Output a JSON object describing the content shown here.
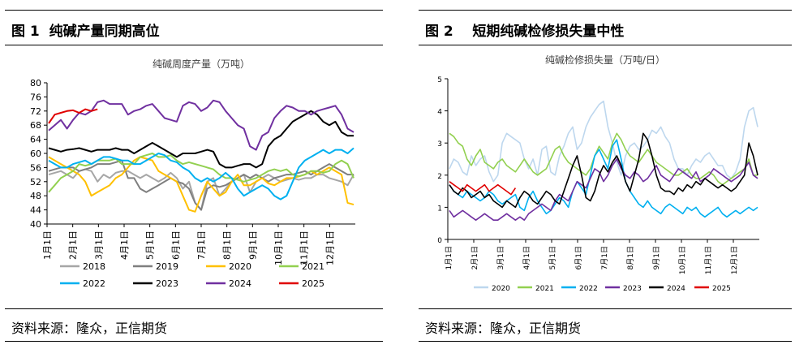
{
  "panels": [
    {
      "title": "图 1  纯碱产量同期高位",
      "source": "资料来源：隆众，正信期货"
    },
    {
      "title": "图 2    短期纯碱检修损失量中性",
      "source": "资料来源：隆众，正信期货"
    }
  ],
  "chart_data": [
    {
      "type": "line",
      "title": "纯碱周度产量（万吨）",
      "xlabel": "",
      "ylabel": "",
      "ylim": [
        40,
        80
      ],
      "yticks": [
        "80",
        "76",
        "72",
        "68",
        "64",
        "60",
        "56",
        "52",
        "48",
        "44",
        "40"
      ],
      "x_tick_labels": [
        "1月1日",
        "2月1日",
        "3月1日",
        "4月1日",
        "5月1日",
        "6月1日",
        "7月1日",
        "8月1日",
        "9月1日",
        "10月1日",
        "11月1日",
        "12月1日"
      ],
      "grid": false,
      "legend_position": "bottom",
      "series": [
        {
          "name": "2018",
          "color": "#a6a6a6",
          "values": [
            54,
            54.5,
            55,
            54,
            53,
            55,
            55.5,
            55,
            52,
            54,
            53,
            54.5,
            55,
            55,
            54,
            53,
            54,
            53,
            52,
            53,
            54.5,
            53,
            50,
            52,
            46,
            44,
            52,
            53,
            48,
            50,
            52,
            53,
            54,
            49,
            52,
            53,
            54,
            53,
            52,
            52.5,
            53,
            52.5,
            53,
            53,
            54,
            54,
            53,
            52.5,
            52,
            51,
            54
          ]
        },
        {
          "name": "2019",
          "color": "#7f7f7f",
          "values": [
            55,
            55.5,
            56,
            56,
            56,
            55,
            55.5,
            56,
            57,
            57,
            57,
            57.5,
            58,
            53,
            53,
            50,
            49,
            50,
            51,
            52,
            53,
            52,
            51.5,
            50,
            46,
            44,
            50,
            51,
            50.5,
            51,
            52,
            53,
            54,
            53,
            54,
            53,
            52,
            53,
            53.5,
            54,
            54,
            54.5,
            55,
            54,
            55,
            56,
            57,
            56,
            55,
            54,
            54
          ]
        },
        {
          "name": "2020",
          "color": "#ffc000",
          "values": [
            59,
            58,
            57,
            56,
            55,
            54,
            52,
            48,
            49,
            50,
            51,
            53,
            54,
            56,
            58,
            59,
            58.5,
            58,
            55,
            54,
            53,
            52,
            48,
            44,
            43.5,
            48,
            52,
            50,
            48,
            49,
            52,
            54,
            51,
            51,
            52,
            53,
            51.5,
            51,
            52,
            53,
            53,
            53.5,
            54,
            55,
            54,
            55,
            56,
            55,
            54,
            46,
            45.5
          ]
        },
        {
          "name": "2021",
          "color": "#92d050",
          "values": [
            49,
            51,
            53,
            54,
            55,
            57,
            56.5,
            57,
            58,
            58,
            58,
            58.5,
            57,
            57,
            57,
            59,
            59.5,
            60,
            59,
            59,
            59.5,
            58,
            57,
            57.5,
            57,
            56.5,
            56,
            55.5,
            54,
            53,
            53,
            52.5,
            52,
            52.5,
            53,
            54,
            55,
            55.5,
            55,
            55.5,
            54,
            53.5,
            54,
            55,
            55,
            54.5,
            55,
            57,
            58,
            57,
            53
          ]
        },
        {
          "name": "2022",
          "color": "#00b0f0",
          "values": [
            58,
            57,
            56,
            56,
            57,
            57.5,
            58,
            57,
            58,
            59,
            59,
            58.5,
            58,
            58,
            57,
            57,
            58,
            59,
            60,
            59.5,
            58,
            57.5,
            56,
            55,
            53,
            52,
            53,
            52,
            53,
            54.5,
            53,
            50,
            48,
            49,
            50,
            51,
            50,
            48,
            47,
            48,
            52,
            56,
            58,
            59,
            60,
            61,
            60,
            61,
            61,
            60,
            61.5
          ]
        },
        {
          "name": "2023",
          "color": "#000000",
          "values": [
            61.5,
            61,
            60.5,
            61,
            61.2,
            61.5,
            61,
            60.5,
            61,
            61,
            61,
            61.5,
            61,
            61,
            60,
            61,
            62,
            63,
            62,
            61,
            60,
            59,
            60,
            60,
            60,
            60.5,
            61,
            60.5,
            57,
            56,
            56,
            56.5,
            57,
            57,
            56,
            57,
            62,
            64,
            65,
            67,
            69,
            70,
            71,
            72,
            71,
            69,
            68,
            69,
            66,
            65,
            65
          ]
        },
        {
          "name": "2024",
          "color": "#7030a0",
          "values": [
            66.5,
            68,
            69.5,
            67,
            69.5,
            71.5,
            71,
            72,
            74.5,
            75,
            74,
            74,
            74,
            71,
            72,
            72.5,
            73.5,
            74,
            72,
            70,
            69.5,
            69,
            73.5,
            74.5,
            74,
            72,
            73,
            75,
            74.5,
            72,
            70,
            68,
            67,
            62,
            61,
            65,
            66,
            70,
            72,
            73.5,
            73,
            72,
            72,
            71,
            72,
            72.5,
            73,
            73.5,
            71,
            67,
            66
          ]
        },
        {
          "name": "2025",
          "color": "#e00000",
          "values": [
            68.5,
            71,
            71.5,
            72,
            72.2,
            71.5,
            72.5,
            72,
            72.5
          ]
        }
      ]
    },
    {
      "type": "line",
      "title": "纯碱检修损失量（万吨/日）",
      "xlabel": "",
      "ylabel": "",
      "ylim": [
        0,
        5
      ],
      "yticks": [
        "5",
        "4",
        "3",
        "2",
        "1",
        "0"
      ],
      "x_tick_labels": [
        "1月1日",
        "2月1日",
        "3月1日",
        "4月1日",
        "5月1日",
        "6月1日",
        "7月1日",
        "8月1日",
        "9月1日",
        "10月1日",
        "11月1日",
        "12月1日"
      ],
      "grid": false,
      "legend_position": "bottom",
      "series": [
        {
          "name": "2020",
          "color": "#bdd7ee",
          "values": [
            2.2,
            2.5,
            2.4,
            2.1,
            2.0,
            2.6,
            2.3,
            2.5,
            2.6,
            2.1,
            1.8,
            2.0,
            3.0,
            3.3,
            3.2,
            3.1,
            3.0,
            2.5,
            2.2,
            2.5,
            2.0,
            2.8,
            2.9,
            2.1,
            2.0,
            2.6,
            2.9,
            3.3,
            3.5,
            2.8,
            3.0,
            3.5,
            3.8,
            4.0,
            4.2,
            4.3,
            3.5,
            3.0,
            2.4,
            2.0,
            2.6,
            2.9,
            3.0,
            2.8,
            2.9,
            3.1,
            3.4,
            3.3,
            3.5,
            3.2,
            3.0,
            2.5,
            2.2,
            2.2,
            2.0,
            2.3,
            2.5,
            2.4,
            2.6,
            2.7,
            2.5,
            2.3,
            2.3,
            2.0,
            1.9,
            2.1,
            2.5,
            3.5,
            4.0,
            4.1,
            3.5
          ]
        },
        {
          "name": "2021",
          "color": "#92d050",
          "values": [
            3.3,
            3.2,
            3.0,
            2.9,
            2.5,
            2.3,
            2.6,
            2.8,
            2.4,
            2.3,
            2.2,
            2.4,
            2.5,
            2.3,
            2.2,
            2.1,
            2.3,
            2.5,
            2.3,
            2.1,
            2.0,
            2.1,
            2.2,
            2.5,
            2.8,
            2.9,
            2.6,
            2.4,
            2.3,
            2.2,
            2.1,
            2.0,
            2.2,
            2.6,
            2.9,
            2.7,
            2.5,
            3.0,
            3.3,
            3.1,
            2.8,
            2.6,
            2.5,
            2.4,
            2.6,
            2.8,
            2.6,
            2.4,
            2.3,
            2.2,
            2.1,
            2.0,
            2.0,
            2.1,
            2.2,
            2.0,
            1.9,
            1.9,
            2.0,
            2.1,
            2.0,
            1.8,
            1.7,
            1.8,
            1.9,
            2.0,
            2.1,
            2.2,
            2.5,
            2.0,
            2.0
          ]
        },
        {
          "name": "2022",
          "color": "#00b0f0",
          "values": [
            1.7,
            1.5,
            1.4,
            1.3,
            1.5,
            1.4,
            1.3,
            1.2,
            1.3,
            1.5,
            1.4,
            1.2,
            1.1,
            1.2,
            1.3,
            1.4,
            1.0,
            0.9,
            1.3,
            1.5,
            1.2,
            1.0,
            0.8,
            0.9,
            1.1,
            1.3,
            1.2,
            1.0,
            1.5,
            1.8,
            1.6,
            1.4,
            2.0,
            2.6,
            2.8,
            2.5,
            2.2,
            2.9,
            3.1,
            2.5,
            1.8,
            1.5,
            1.3,
            1.1,
            1.0,
            1.2,
            1.0,
            0.9,
            0.8,
            1.0,
            1.1,
            1.0,
            0.9,
            0.8,
            1.0,
            0.9,
            1.0,
            0.8,
            0.7,
            0.8,
            0.9,
            1.0,
            0.8,
            0.7,
            0.8,
            0.9,
            0.8,
            0.9,
            1.0,
            0.9,
            1.0
          ]
        },
        {
          "name": "2023",
          "color": "#7030a0",
          "values": [
            0.9,
            0.7,
            0.8,
            0.9,
            0.8,
            0.7,
            0.6,
            0.7,
            0.8,
            0.7,
            0.6,
            0.6,
            0.7,
            0.8,
            0.7,
            0.6,
            0.7,
            0.6,
            0.8,
            0.9,
            1.0,
            1.1,
            1.0,
            0.9,
            1.2,
            1.4,
            1.3,
            1.2,
            1.5,
            1.8,
            1.7,
            1.6,
            1.9,
            2.2,
            2.1,
            1.8,
            2.0,
            2.3,
            2.5,
            2.2,
            2.0,
            1.9,
            2.1,
            2.0,
            1.8,
            1.9,
            2.1,
            2.3,
            2.0,
            1.9,
            1.8,
            2.0,
            2.2,
            2.1,
            2.0,
            1.9,
            2.1,
            1.8,
            1.9,
            2.0,
            2.2,
            2.1,
            2.0,
            1.9,
            1.8,
            1.9,
            2.0,
            2.2,
            2.4,
            2.0,
            1.9
          ]
        },
        {
          "name": "2024",
          "color": "#000000",
          "values": [
            1.7,
            1.5,
            1.4,
            1.6,
            1.5,
            1.3,
            1.4,
            1.5,
            1.3,
            1.4,
            1.2,
            1.1,
            1.0,
            1.2,
            1.1,
            1.0,
            1.3,
            1.5,
            1.4,
            1.2,
            1.1,
            1.3,
            1.5,
            1.4,
            1.2,
            1.1,
            1.5,
            1.9,
            2.3,
            2.6,
            2.0,
            1.3,
            1.2,
            1.5,
            2.0,
            2.3,
            2.1,
            2.4,
            2.6,
            2.3,
            1.8,
            1.5,
            2.0,
            2.5,
            3.3,
            3.1,
            2.6,
            2.0,
            1.6,
            1.5,
            1.5,
            1.4,
            1.6,
            1.5,
            1.7,
            1.6,
            1.8,
            1.7,
            1.9,
            1.8,
            1.7,
            1.6,
            1.7,
            1.6,
            1.5,
            1.6,
            1.8,
            2.0,
            3.0,
            2.6,
            2.0
          ]
        },
        {
          "name": "2025",
          "color": "#e00000",
          "values": [
            1.8,
            1.7,
            1.6,
            1.5,
            1.7,
            1.6,
            1.5,
            1.6,
            1.7,
            1.5,
            1.6,
            1.7,
            1.6,
            1.5,
            1.4,
            1.6
          ]
        }
      ]
    }
  ]
}
